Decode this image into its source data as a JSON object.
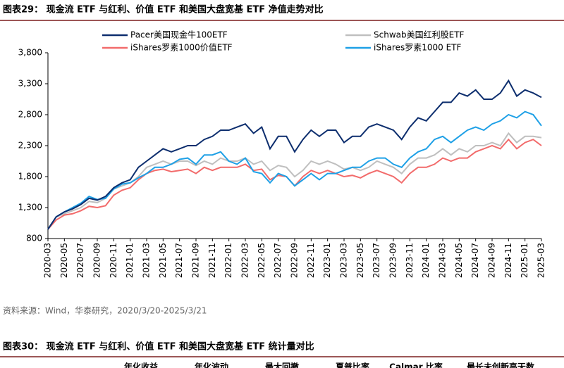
{
  "header": {
    "title": "图表29：  现金流 ETF 与红利、价值 ETF 和美国大盘宽基 ETF 净值走势对比"
  },
  "chart_data": {
    "type": "line",
    "categories": [
      "2020-03",
      null,
      "2020-05",
      null,
      "2020-07",
      null,
      "2020-09",
      null,
      "2020-11",
      null,
      "2021-01",
      null,
      "2021-03",
      null,
      "2021-05",
      null,
      "2021-07",
      null,
      "2021-09",
      null,
      "2021-11",
      null,
      "2022-01",
      null,
      "2022-03",
      null,
      "2022-05",
      null,
      "2022-07",
      null,
      "2022-09",
      null,
      "2022-11",
      null,
      "2023-01",
      null,
      "2023-03",
      null,
      "2023-05",
      null,
      "2023-07",
      null,
      "2023-09",
      null,
      "2023-11",
      null,
      "2024-01",
      null,
      "2024-03",
      null,
      "2024-05",
      null,
      "2024-07",
      null,
      "2024-09",
      null,
      "2024-11",
      null,
      "2025-01",
      null,
      "2025-03"
    ],
    "series": [
      {
        "name": "Pacer美国现金牛100ETF",
        "color": "#0d2e6e",
        "values": [
          950,
          1150,
          1230,
          1280,
          1350,
          1450,
          1420,
          1480,
          1620,
          1700,
          1750,
          1950,
          2050,
          2150,
          2250,
          2200,
          2250,
          2300,
          2300,
          2400,
          2450,
          2550,
          2550,
          2600,
          2650,
          2500,
          2600,
          2250,
          2450,
          2450,
          2200,
          2400,
          2550,
          2450,
          2550,
          2550,
          2350,
          2450,
          2450,
          2600,
          2650,
          2600,
          2550,
          2400,
          2600,
          2750,
          2700,
          2850,
          3000,
          3000,
          3150,
          3100,
          3200,
          3050,
          3050,
          3150,
          3350,
          3100,
          3200,
          3150,
          3080
        ]
      },
      {
        "name": "Schwab美国红利股ETF",
        "color": "#bfbfbf",
        "values": [
          950,
          1150,
          1200,
          1250,
          1300,
          1400,
          1380,
          1450,
          1600,
          1650,
          1700,
          1800,
          1950,
          2000,
          2050,
          2000,
          2050,
          2050,
          1980,
          2050,
          2000,
          2100,
          2050,
          2050,
          2100,
          2000,
          2050,
          1900,
          1980,
          1950,
          1800,
          1900,
          2050,
          2000,
          2050,
          2000,
          1920,
          1950,
          1900,
          1950,
          2050,
          2000,
          1950,
          1850,
          2000,
          2100,
          2100,
          2150,
          2250,
          2150,
          2250,
          2200,
          2300,
          2300,
          2350,
          2300,
          2500,
          2350,
          2450,
          2450,
          2430
        ]
      },
      {
        "name": "iShares罗素1000价值ETF",
        "color": "#f26b6b",
        "values": [
          950,
          1100,
          1180,
          1200,
          1250,
          1320,
          1300,
          1330,
          1500,
          1580,
          1620,
          1750,
          1850,
          1900,
          1920,
          1880,
          1900,
          1920,
          1850,
          1950,
          1900,
          1950,
          1950,
          1950,
          2000,
          1900,
          1920,
          1750,
          1820,
          1800,
          1650,
          1800,
          1900,
          1850,
          1900,
          1850,
          1800,
          1820,
          1780,
          1850,
          1900,
          1850,
          1800,
          1700,
          1850,
          1950,
          1950,
          2000,
          2100,
          2050,
          2100,
          2100,
          2200,
          2250,
          2300,
          2250,
          2400,
          2250,
          2350,
          2400,
          2300
        ]
      },
      {
        "name": "iShares罗素1000 ETF",
        "color": "#1ea0e6",
        "values": [
          950,
          1150,
          1230,
          1300,
          1370,
          1480,
          1430,
          1450,
          1600,
          1680,
          1700,
          1780,
          1850,
          1950,
          1950,
          2000,
          2080,
          2100,
          2000,
          2150,
          2150,
          2200,
          2050,
          2000,
          2100,
          1880,
          1850,
          1700,
          1850,
          1800,
          1650,
          1750,
          1850,
          1750,
          1850,
          1850,
          1900,
          1950,
          1950,
          2050,
          2100,
          2100,
          2000,
          1950,
          2100,
          2200,
          2250,
          2400,
          2450,
          2350,
          2450,
          2550,
          2600,
          2550,
          2650,
          2700,
          2800,
          2750,
          2850,
          2800,
          2620
        ]
      }
    ],
    "ylim": [
      800,
      3800
    ],
    "yticks": [
      800,
      {
        "value": 1300,
        "label": "1,300"
      },
      {
        "value": 1800,
        "label": "1,800"
      },
      {
        "value": 2300,
        "label": "2,300"
      },
      {
        "value": 2800,
        "label": "2,800"
      },
      {
        "value": 3300,
        "label": "3,300"
      },
      {
        "value": 3800,
        "label": "3,800"
      }
    ],
    "grid": false
  },
  "source": "资料来源：Wind，华泰研究，2020/3/20-2025/3/21",
  "next_section": {
    "title": "图表30：  现金流 ETF 与红利、价值 ETF 和美国大盘宽基 ETF 统计量对比",
    "columns": [
      "年化收益",
      "年化波动",
      "最大回撤",
      "夏普比率",
      "Calmar 比率",
      "最长未创新高天数"
    ]
  }
}
